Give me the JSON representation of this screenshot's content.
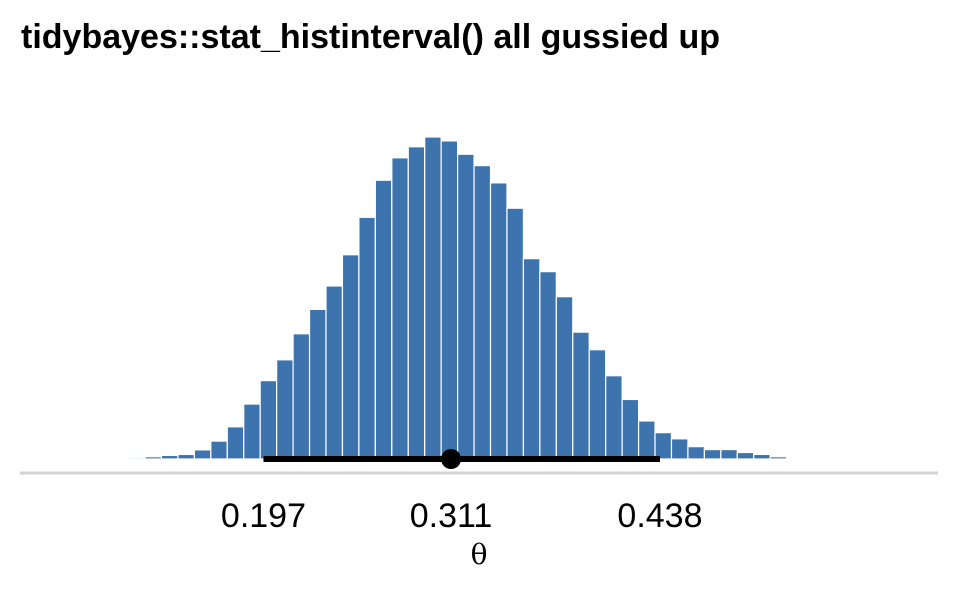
{
  "chart_data": {
    "type": "bar",
    "title": "tidybayes::stat_histinterval() all gussied up",
    "xlabel": "θ",
    "ylabel": "",
    "x_ticks": [
      "0.197",
      "0.311",
      "0.438"
    ],
    "x_tick_values": [
      0.197,
      0.311,
      0.438
    ],
    "xlim": [
      0.049,
      0.607
    ],
    "bin_width": 0.01,
    "bin_start": 0.075,
    "counts": [
      1,
      1,
      0,
      1,
      4,
      7,
      11,
      14,
      28,
      55,
      99,
      169,
      241,
      305,
      385,
      460,
      532,
      628,
      743,
      857,
      926,
      960,
      990,
      978,
      937,
      902,
      849,
      771,
      616,
      576,
      499,
      390,
      336,
      256,
      183,
      117,
      81,
      62,
      38,
      29,
      29,
      20,
      14,
      7,
      3,
      1,
      1,
      0,
      1,
      1
    ],
    "bar_color": "#3e74ad",
    "interval": {
      "lower": 0.197,
      "point": 0.311,
      "upper": 0.438
    },
    "interval_color": "#000000",
    "grid": false,
    "legend": "none"
  }
}
